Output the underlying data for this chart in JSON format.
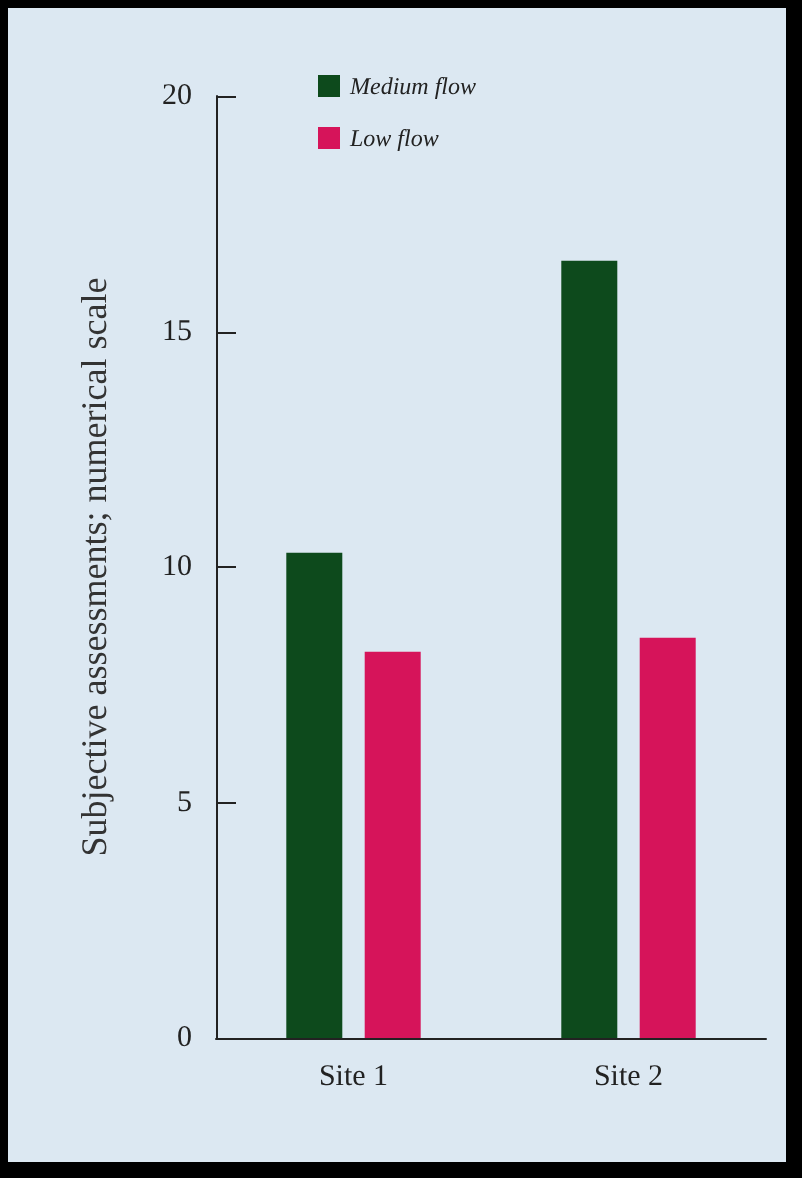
{
  "chart_data": {
    "type": "bar",
    "ylabel": "Subjective assessments; numerical scale",
    "categories": [
      "Site 1",
      "Site 2"
    ],
    "series": [
      {
        "name": "Medium flow",
        "color": "#0d4a1c",
        "values": [
          10.3,
          16.5
        ]
      },
      {
        "name": "Low flow",
        "color": "#d6145a",
        "values": [
          8.2,
          8.5
        ]
      }
    ],
    "ylim": [
      0,
      20
    ],
    "yticks": [
      0,
      5,
      10,
      15,
      20
    ],
    "grid": false,
    "legend": "top left"
  }
}
